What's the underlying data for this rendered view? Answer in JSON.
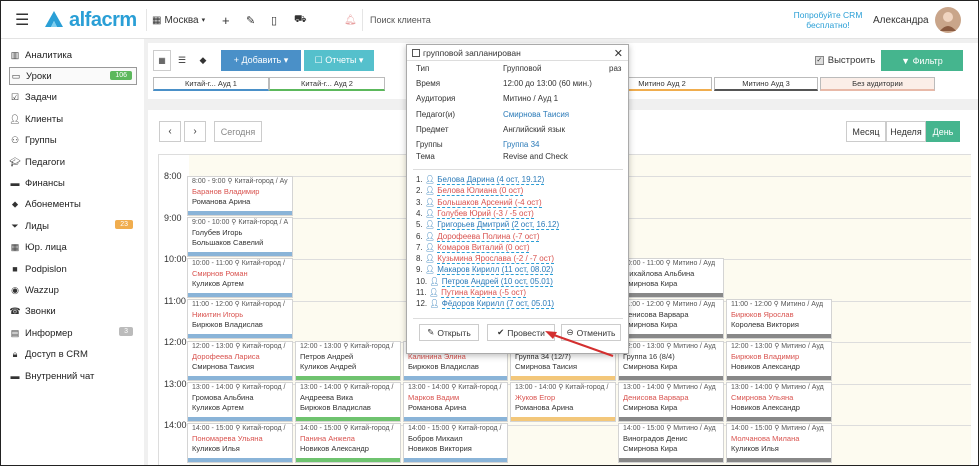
{
  "app": {
    "logo": "alfacrm",
    "city": "Москва",
    "search_placeholder": "Поиск клиента",
    "promo": "Попробуйте CRM бесплатно!",
    "user": "Александра"
  },
  "sidebar": {
    "items": [
      {
        "label": "Аналитика",
        "icon": "chart-icon"
      },
      {
        "label": "Уроки",
        "icon": "book-icon",
        "badge": "106",
        "badge_color": "#5cb85c"
      },
      {
        "label": "Задачи",
        "icon": "task-icon"
      },
      {
        "label": "Клиенты",
        "icon": "user-icon"
      },
      {
        "label": "Группы",
        "icon": "users-icon"
      },
      {
        "label": "Педагоги",
        "icon": "teacher-icon"
      },
      {
        "label": "Финансы",
        "icon": "money-icon"
      },
      {
        "label": "Абонементы",
        "icon": "tag-icon"
      },
      {
        "label": "Лиды",
        "icon": "funnel-icon",
        "badge": "23",
        "badge_color": "#f0ad4e"
      },
      {
        "label": "Юр. лица",
        "icon": "building-icon"
      },
      {
        "label": "Podpislon",
        "icon": "sign-icon"
      },
      {
        "label": "Wazzup",
        "icon": "chat-icon"
      },
      {
        "label": "Звонки",
        "icon": "phone-icon"
      },
      {
        "label": "Информер",
        "icon": "inbox-icon",
        "badge": "3",
        "badge_color": "#bbb"
      },
      {
        "label": "Доступ в CRM",
        "icon": "lock-icon"
      },
      {
        "label": "Внутренний чат",
        "icon": "message-icon"
      }
    ]
  },
  "toolbar": {
    "add": "+ Добавить ▾",
    "reports": "☐ Отчеты ▾",
    "align": "Выстроить",
    "filter": "▼ Фильтр",
    "today": "Сегодня",
    "month": "Месяц",
    "week": "Неделя",
    "day": "День"
  },
  "rooms": [
    "Китай-г... Ауд 1",
    "Китай-г... Ауд 2",
    "Митино Ауд 2",
    "Митино Ауд 3",
    "Без аудитории"
  ],
  "times": [
    "8:00",
    "9:00",
    "10:00",
    "11:00",
    "12:00",
    "13:00",
    "14:00"
  ],
  "cards": {
    "c1": {
      "time": "8:00 - 9:00 ⚲ Китай-город / Ау",
      "student": "Баранов Владимир",
      "teacher": "Романова Арина"
    },
    "c2": {
      "time": "9:00 - 10:00 ⚲ Китай-город / А",
      "student": "Голубев Игорь",
      "teacher": "Большаков Савелий"
    },
    "c3": {
      "time": "10:00 - 11:00 ⚲ Китай-город /",
      "student": "Смирнов Роман",
      "teacher": "Куликов Артем"
    },
    "c4": {
      "time": "11:00 - 12:00 ⚲ Китай-город /",
      "student": "Никитин Игорь",
      "teacher": "Бирюков Владислав"
    },
    "c5": {
      "time": "12:00 - 13:00 ⚲ Китай-город /",
      "student": "Дорофеева Лариса",
      "teacher": "Смирнова Таисия"
    },
    "c6": {
      "time": "12:00 - 13:00 ⚲ Китай-город /",
      "student": "Петров Андрей",
      "teacher": "Куликов Андрей"
    },
    "c7": {
      "time": "13:00 - 14:00 ⚲ Китай-город /",
      "student": "Громова Альбина",
      "teacher": "Куликов Артем"
    },
    "c8": {
      "time": "13:00 - 14:00 ⚲ Китай-город /",
      "student": "Андреева Вика",
      "teacher": "Бирюков Владислав"
    },
    "c9": {
      "time": "14:00 - 15:00 ⚲ Китай-город /",
      "student": "Пономарева Ульяна",
      "teacher": "Куликов Илья"
    },
    "c10": {
      "time": "14:00 - 15:00 ⚲ Китай-город /",
      "student": "Панина Анжела",
      "teacher": "Новиков Александр"
    },
    "c11": {
      "time": "12:00 - 13:00 ⚲ Китай-город /",
      "student": "Калинина Элина",
      "teacher": "Бирюков Владислав"
    },
    "c12": {
      "time": "12:00 - 13:00 ⚲ Митино / Ауд",
      "student": "Группа 34 (12/7)",
      "teacher": "Смирнова Таисия"
    },
    "c13": {
      "time": "12:00 - 13:00 ⚲ Митино / Ауд",
      "student": "Группа 16 (8/4)",
      "teacher": "Смирнова Кира"
    },
    "c14": {
      "time": "12:00 - 13:00 ⚲ Митино / Ауд",
      "student": "Бирюков Владимир",
      "teacher": "Новиков Александр"
    },
    "c15": {
      "time": "13:00 - 14:00 ⚲ Китай-город /",
      "student": "Марков Вадим",
      "teacher": "Романова Арина"
    },
    "c16": {
      "time": "13:00 - 14:00 ⚲ Китай-город /",
      "student": "Жуков Егор",
      "teacher": "Романова Арина"
    },
    "c17": {
      "time": "13:00 - 14:00 ⚲ Митино / Ауд",
      "student": "Денисова Варвара",
      "teacher": "Смирнова Кира"
    },
    "c18": {
      "time": "13:00 - 14:00 ⚲ Митино / Ауд",
      "student": "Смирнова Ульяна",
      "teacher": "Новиков Александр"
    },
    "c19": {
      "time": "14:00 - 15:00 ⚲ Китай-город /",
      "student": "Бобров Михаил",
      "teacher": "Новиков Виктория"
    },
    "c20": {
      "time": "14:00 - 15:00 ⚲ Митино / Ауд",
      "student": "Виноградов Денис",
      "teacher": "Смирнова Кира"
    },
    "c21": {
      "time": "14:00 - 15:00 ⚲ Митино / Ауд",
      "student": "Молчанова Милана",
      "teacher": "Куликов Илья"
    },
    "c22": {
      "time": "10:00 - 11:00 ⚲ Митино / Ауд",
      "student": "Михайлова Альбина",
      "teacher": "Смирнова Кира"
    },
    "c23": {
      "time": "11:00 - 12:00 ⚲ Митино / Ауд",
      "student": "Денисова Варвара",
      "teacher": "Смирнова Кира"
    },
    "c24": {
      "time": "11:00 - 12:00 ⚲ Митино / Ауд",
      "student": "Бирюков Ярослав",
      "teacher": "Королева Виктория"
    }
  },
  "popup": {
    "title": "групповой запланирован",
    "rows": [
      {
        "k": "Тип",
        "v": "Групповой",
        "extra": "раз"
      },
      {
        "k": "Время",
        "v": "12:00 до 13:00 (60 мин.)"
      },
      {
        "k": "Аудитория",
        "v": "Митино / Ауд 1"
      },
      {
        "k": "Педагог(и)",
        "v": "Смирнова Таисия"
      },
      {
        "k": "Предмет",
        "v": "Английский язык"
      },
      {
        "k": "Группы",
        "v": "Группа 34"
      },
      {
        "k": "Тема",
        "v": "Revise and Check"
      }
    ],
    "students": [
      {
        "n": "1.",
        "name": "Белова Дарина (4 ост, 19.12)",
        "color": "#2a7ab8"
      },
      {
        "n": "2.",
        "name": "Белова Юлиана (0 ост)",
        "color": "#d9534f"
      },
      {
        "n": "3.",
        "name": "Большаков Арсений (-4 ост)",
        "color": "#d9534f"
      },
      {
        "n": "4.",
        "name": "Голубев Юрий (-3 / -5 ост)",
        "color": "#d9534f"
      },
      {
        "n": "5.",
        "name": "Григорьев Дмитрий (2 ост, 16.12)",
        "color": "#2a7ab8"
      },
      {
        "n": "6.",
        "name": "Дорофеева Полина (-7 ост)",
        "color": "#d9534f"
      },
      {
        "n": "7.",
        "name": "Комаров Виталий (0 ост)",
        "color": "#d9534f"
      },
      {
        "n": "8.",
        "name": "Кузьмина Ярослава (-2 / -7 ост)",
        "color": "#d9534f"
      },
      {
        "n": "9.",
        "name": "Макаров Кирилл (11 ост, 08.02)",
        "color": "#2a7ab8"
      },
      {
        "n": "10.",
        "name": "Петров Андрей (10 ост, 05.01)",
        "color": "#2a7ab8"
      },
      {
        "n": "11.",
        "name": "Путина Карина (-5 ост)",
        "color": "#d9534f"
      },
      {
        "n": "12.",
        "name": "Фёдоров Кирилл (7 ост, 05.01)",
        "color": "#2a7ab8"
      }
    ],
    "open": "Открыть",
    "conduct": "Провести",
    "cancel": "Отменить"
  }
}
